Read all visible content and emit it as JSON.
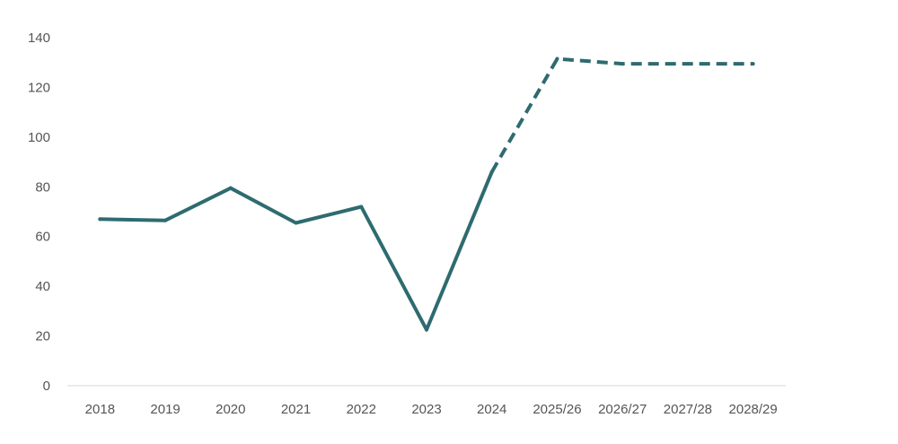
{
  "chart_data": {
    "type": "line",
    "categories": [
      "2018",
      "2019",
      "2020",
      "2021",
      "2022",
      "2023",
      "2024",
      "2025/26",
      "2026/27",
      "2027/28",
      "2028/29"
    ],
    "series": [
      {
        "values": [
          67,
          66.5,
          79.5,
          65.5,
          72,
          22.5,
          86,
          131.5,
          129.5,
          129.5,
          129.5
        ],
        "style": "solid through 2024, dashed from 2024 onward (projection)",
        "color": "#2e6b70"
      }
    ],
    "yticks": [
      "0",
      "20",
      "40",
      "60",
      "80",
      "100",
      "120",
      "140"
    ],
    "ylim": [
      0,
      140
    ],
    "grid": false,
    "legend": "none"
  }
}
